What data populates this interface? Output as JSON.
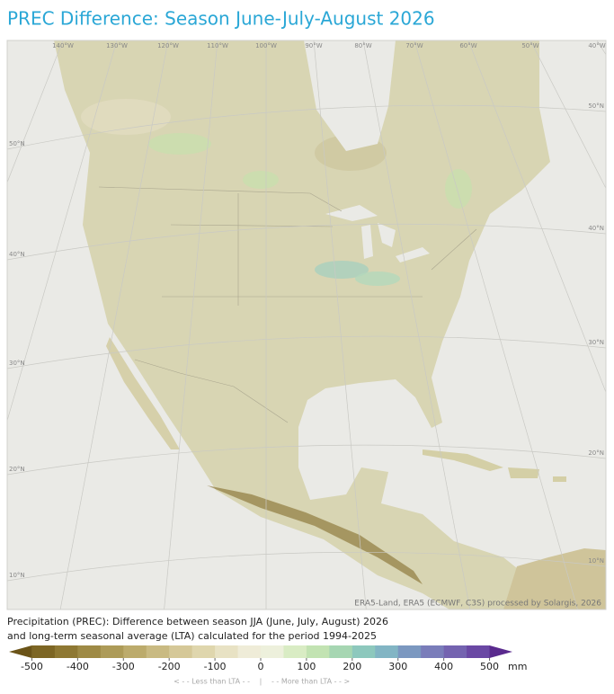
{
  "header": {
    "title": "PREC Difference: Season June-July-August 2026"
  },
  "map": {
    "lon_labels": [
      "140°W",
      "130°W",
      "120°W",
      "110°W",
      "100°W",
      "90°W",
      "80°W",
      "70°W",
      "60°W",
      "50°W",
      "40°W"
    ],
    "lat_labels_left": [
      "50°N",
      "40°N",
      "30°N",
      "20°N",
      "10°N"
    ],
    "lat_labels_right": [
      "50°N",
      "40°N",
      "30°N",
      "20°N",
      "10°N"
    ],
    "attribution": "ERA5-Land, ERA5 (ECMWF, C3S) processed by Solargis, 2026"
  },
  "caption": [
    "Precipitation (PREC): Difference between season JJA (June, July, August) 2026",
    "and long-term seasonal average (LTA) calculated for the period 1994-2025"
  ],
  "legend": {
    "lim": [
      -550,
      550
    ],
    "ticks": [
      -500,
      -400,
      -300,
      -200,
      -100,
      0,
      100,
      200,
      300,
      400,
      500
    ],
    "unit": "mm",
    "colors": [
      "#6b5418",
      "#7d6624",
      "#8e7833",
      "#9e8a45",
      "#ad9b58",
      "#bcab6c",
      "#c9ba82",
      "#d5c898",
      "#dfd6ad",
      "#e8e2c4",
      "#efecd8",
      "#edf0dc",
      "#d9ecc4",
      "#c2e3b2",
      "#a6d6b2",
      "#8dc8bd",
      "#82b5c4",
      "#7b98c0",
      "#7a7dba",
      "#7463b0",
      "#6a48a4",
      "#5a2a8e"
    ],
    "less": "< - -  Less than LTA  - -",
    "separator": "|",
    "more": "- -  More than LTA  - - >"
  }
}
